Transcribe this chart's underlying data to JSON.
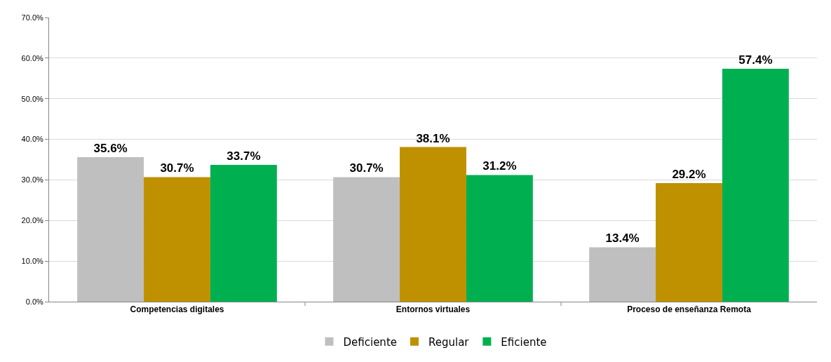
{
  "chart_data": {
    "type": "bar",
    "categories": [
      "Competencias digitales",
      "Entornos virtuales",
      "Proceso de enseñanza Remota"
    ],
    "series": [
      {
        "name": "Deficiente",
        "color": "#bfbfbf",
        "values": [
          35.6,
          30.7,
          13.4
        ],
        "value_labels": [
          "35.6%",
          "30.7%",
          "13.4%"
        ]
      },
      {
        "name": "Regular",
        "color": "#bf9000",
        "values": [
          30.7,
          38.1,
          29.2
        ],
        "value_labels": [
          "30.7%",
          "38.1%",
          "29.2%"
        ]
      },
      {
        "name": "Eficiente",
        "color": "#00b050",
        "values": [
          33.7,
          31.2,
          57.4
        ],
        "value_labels": [
          "33.7%",
          "31.2%",
          "57.4%"
        ]
      }
    ],
    "ylim": [
      0,
      70
    ],
    "yticks": [
      {
        "value": 0,
        "label": "0.0%"
      },
      {
        "value": 10,
        "label": "10.0%"
      },
      {
        "value": 20,
        "label": "20.0%"
      },
      {
        "value": 30,
        "label": "30.0%"
      },
      {
        "value": 40,
        "label": "40.0%"
      },
      {
        "value": 50,
        "label": "50.0%"
      },
      {
        "value": 60,
        "label": "60.0%"
      },
      {
        "value": 70,
        "label": "70.0%"
      }
    ],
    "grid": "y",
    "legend": "bottom"
  }
}
